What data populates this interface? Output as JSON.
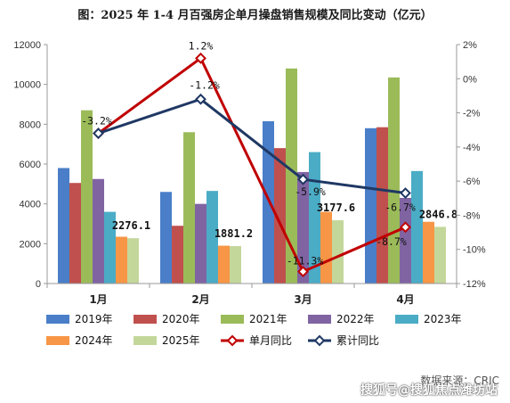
{
  "title": "图：2025 年 1-4 月百强房企单月操盘销售规模及同比变动（亿元）",
  "source_text": "数据来源：CRIC",
  "watermark_text": "搜狐号@搜狐焦点潍坊站",
  "colors": {
    "bars": [
      "#4a7ec8",
      "#c0504d",
      "#9bbb59",
      "#8064a2",
      "#4bacc6",
      "#f79646",
      "#c4d79b"
    ],
    "monthly_line": "#c00000",
    "cumulative_line": "#1f3864",
    "axis": "#999999"
  },
  "chart_data": {
    "type": "bar",
    "title": "图：2025 年 1-4 月百强房企单月操盘销售规模及同比变动（亿元）",
    "categories": [
      "1月",
      "2月",
      "3月",
      "4月"
    ],
    "ylim": [
      0,
      12000
    ],
    "y_ticks": [
      "0",
      "2000",
      "4000",
      "6000",
      "8000",
      "10000",
      "12000"
    ],
    "y2lim": [
      -12,
      2
    ],
    "y2_ticks": [
      "2%",
      "0%",
      "-2%",
      "-4%",
      "-6%",
      "-8%",
      "-10%",
      "-12%"
    ],
    "series": [
      {
        "name": "2019年",
        "values": [
          5800,
          4600,
          8150,
          7800
        ]
      },
      {
        "name": "2020年",
        "values": [
          5050,
          2900,
          6800,
          7850
        ]
      },
      {
        "name": "2021年",
        "values": [
          8700,
          7600,
          10800,
          10350
        ]
      },
      {
        "name": "2022年",
        "values": [
          5250,
          4000,
          5600,
          4300
        ]
      },
      {
        "name": "2023年",
        "values": [
          3600,
          4650,
          6600,
          5650
        ]
      },
      {
        "name": "2024年",
        "values": [
          2350,
          1900,
          3600,
          3100
        ]
      },
      {
        "name": "2025年",
        "values": [
          2276.1,
          1881.2,
          3177.6,
          2846.8
        ]
      }
    ],
    "bar_labels": [
      "2276.1",
      "1881.2",
      "3177.6",
      "2846.8"
    ],
    "lines": [
      {
        "name": "单月同比",
        "values": [
          -3.2,
          1.2,
          -11.3,
          -8.7
        ],
        "labels": [
          "-3.2%",
          "1.2%",
          "-11.3%",
          "-8.7%"
        ]
      },
      {
        "name": "累计同比",
        "values": [
          -3.2,
          -1.2,
          -5.9,
          -6.7
        ],
        "labels": [
          "",
          "-1.2%",
          "-5.9%",
          "-6.7%"
        ]
      }
    ],
    "legend": [
      "2019年",
      "2020年",
      "2021年",
      "2022年",
      "2023年",
      "2024年",
      "2025年",
      "单月同比",
      "累计同比"
    ]
  }
}
